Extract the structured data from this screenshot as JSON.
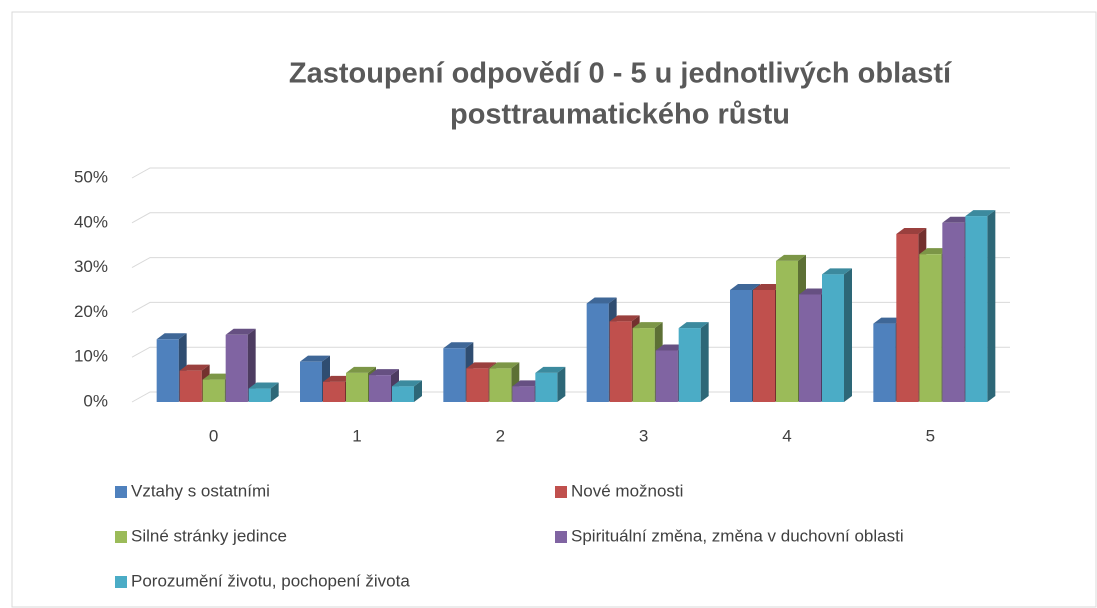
{
  "chart_data": {
    "type": "bar3d",
    "title": "Zastoupení odpovědí  0 - 5 u jednotlivých oblastí",
    "subtitle": "posttraumatického růstu",
    "categories": [
      "0",
      "1",
      "2",
      "3",
      "4",
      "5"
    ],
    "series": [
      {
        "name": "Vztahy s ostatními",
        "color": "#4f81bd",
        "values": [
          14,
          9,
          12,
          22,
          25,
          17.5
        ]
      },
      {
        "name": "Nové možnosti",
        "color": "#c0504d",
        "values": [
          7,
          4.5,
          7.5,
          18,
          25,
          37.5
        ]
      },
      {
        "name": "Silné stránky jedince",
        "color": "#9bbb59",
        "values": [
          5,
          6.5,
          7.5,
          16.5,
          31.5,
          33
        ]
      },
      {
        "name": "Spirituální změna, změna v duchovní oblasti",
        "color": "#8064a2",
        "values": [
          15,
          6,
          3.5,
          11.5,
          24,
          40
        ]
      },
      {
        "name": "Porozumění životu, pochopení života",
        "color": "#4bacc6",
        "values": [
          3,
          3.5,
          6.5,
          16.5,
          28.5,
          41.5
        ]
      }
    ],
    "ylim": [
      0,
      50
    ],
    "yticks": [
      {
        "value": 0,
        "label": "0%"
      },
      {
        "value": 10,
        "label": "10%"
      },
      {
        "value": 20,
        "label": "20%"
      },
      {
        "value": 30,
        "label": "30%"
      },
      {
        "value": 40,
        "label": "40%"
      },
      {
        "value": 50,
        "label": "50%"
      }
    ],
    "grid": true
  }
}
